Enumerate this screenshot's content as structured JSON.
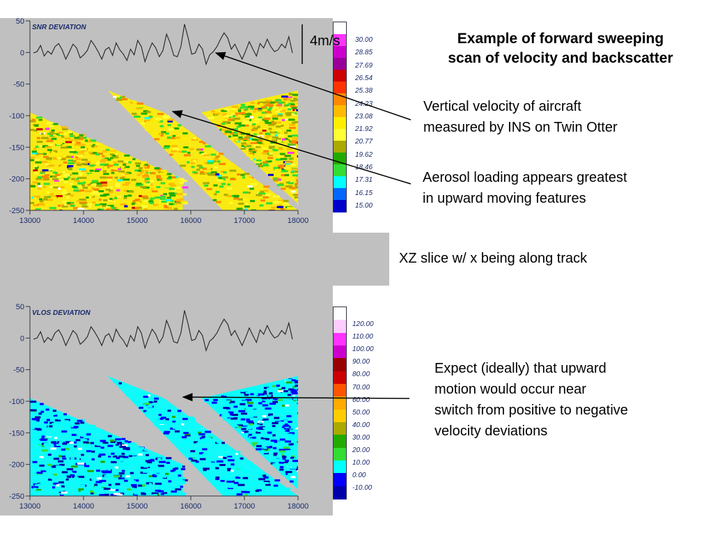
{
  "slide": {
    "title_line1": "Example of forward sweeping",
    "title_line2": "scan of velocity and backscatter",
    "annotation_vv_line1": "Vertical velocity  of aircraft",
    "annotation_vv_line2": "measured by INS on Twin Otter",
    "annotation_aerosol_line1": "Aerosol loading appears greatest",
    "annotation_aerosol_line2": "in upward moving features",
    "annotation_xz": "XZ slice w/ x being along track",
    "annotation_expect_line1": "Expect (ideally) that upward",
    "annotation_expect_line2": "motion would occur near",
    "annotation_expect_line3": "switch from positive to negative",
    "annotation_expect_line4": "velocity deviations",
    "scale_label": "4m/s"
  },
  "chart_data": [
    {
      "type": "heatmap",
      "title": "SNR DEVIATION",
      "xlim": [
        13000,
        18000
      ],
      "ylim": [
        -250,
        50
      ],
      "xticks": [
        "13000",
        "14000",
        "15000",
        "16000",
        "17000",
        "18000"
      ],
      "yticks": [
        "50",
        "0",
        "-50",
        "-100",
        "-150",
        "-200",
        "-250"
      ],
      "colorbar": {
        "labels": [
          "30.00",
          "28.85",
          "27.69",
          "26.54",
          "25.38",
          "24.23",
          "23.08",
          "21.92",
          "20.77",
          "19.62",
          "18.46",
          "17.31",
          "16.15",
          "15.00"
        ],
        "colors": [
          "#ffffff",
          "#ff33ff",
          "#cc00cc",
          "#990099",
          "#cc0000",
          "#ff3300",
          "#ff8800",
          "#ffbb00",
          "#ffee00",
          "#ffff33",
          "#aaaa00",
          "#22aa00",
          "#33dd33",
          "#00ffff",
          "#0066ff",
          "#0000cc"
        ]
      },
      "trace_y": [
        0,
        2,
        12,
        -5,
        3,
        -2,
        10,
        15,
        5,
        -10,
        2,
        14,
        8,
        -8,
        -3,
        4,
        20,
        12,
        2,
        -10,
        5,
        9,
        -4,
        16,
        5,
        -2,
        -12,
        6,
        -3,
        20,
        10,
        -14,
        2,
        16,
        8,
        -6,
        4,
        30,
        16,
        -4,
        -6,
        10,
        46,
        24,
        -2,
        0,
        14,
        6,
        -18,
        -3,
        2,
        10,
        22,
        32,
        24,
        6,
        14,
        2,
        -10,
        3,
        18,
        6,
        -5,
        15,
        8,
        22,
        10,
        2,
        5,
        14,
        8,
        26,
        0
      ]
    },
    {
      "type": "heatmap",
      "title": "VLOS DEVIATION",
      "xlim": [
        13000,
        18000
      ],
      "ylim": [
        -250,
        50
      ],
      "xticks": [
        "13000",
        "14000",
        "15000",
        "16000",
        "17000",
        "18000"
      ],
      "yticks": [
        "50",
        "0",
        "-50",
        "-100",
        "-150",
        "-200",
        "-250"
      ],
      "colorbar": {
        "labels": [
          "120.00",
          "110.00",
          "100.00",
          "90.00",
          "80.00",
          "70.00",
          "60.00",
          "50.00",
          "40.00",
          "30.00",
          "20.00",
          "10.00",
          "0.00",
          "-10.00"
        ],
        "colors": [
          "#ffffff",
          "#ffccff",
          "#ff33ff",
          "#cc00cc",
          "#990000",
          "#cc0000",
          "#ff5500",
          "#ffaa00",
          "#ffcc00",
          "#aaaa00",
          "#22aa00",
          "#33dd33",
          "#00ffff",
          "#0000ff",
          "#0000aa"
        ]
      },
      "trace_y": [
        0,
        2,
        12,
        -5,
        3,
        -2,
        10,
        15,
        5,
        -10,
        2,
        14,
        8,
        -8,
        -3,
        4,
        20,
        12,
        2,
        -10,
        5,
        9,
        -4,
        16,
        5,
        -2,
        -12,
        6,
        -3,
        20,
        10,
        -14,
        2,
        16,
        8,
        -6,
        4,
        30,
        16,
        -4,
        -6,
        10,
        46,
        24,
        -2,
        0,
        14,
        6,
        -18,
        -3,
        2,
        10,
        22,
        32,
        24,
        6,
        14,
        2,
        -10,
        3,
        18,
        6,
        -5,
        15,
        8,
        22,
        10,
        2,
        5,
        14,
        8,
        26,
        0
      ]
    }
  ]
}
